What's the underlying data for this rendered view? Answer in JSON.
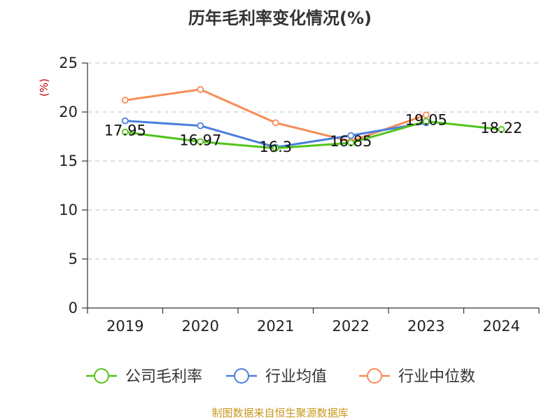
{
  "chart_data": {
    "type": "line",
    "title": "历年毛利率变化情况(%)",
    "ylabel": "(%)",
    "xlabel": "",
    "categories": [
      "2019",
      "2020",
      "2021",
      "2022",
      "2023",
      "2024"
    ],
    "ylim": [
      0,
      25
    ],
    "yticks": [
      0,
      5,
      10,
      15,
      20,
      25
    ],
    "grid": "horizontal-dashed",
    "legend_position": "bottom",
    "series": [
      {
        "name": "公司毛利率",
        "color": "#52c41a",
        "values": [
          17.95,
          16.97,
          16.3,
          16.85,
          19.05,
          18.22
        ],
        "labels": [
          "17.95",
          "16.97",
          "16.3",
          "16.85",
          "19.05",
          "18.22"
        ]
      },
      {
        "name": "行业均值",
        "color": "#4a7fdc",
        "values": [
          19.1,
          18.6,
          16.4,
          17.6,
          18.9,
          null
        ]
      },
      {
        "name": "行业中位数",
        "color": "#f78c55",
        "values": [
          21.2,
          22.3,
          18.9,
          17.0,
          19.7,
          null
        ]
      }
    ]
  },
  "source": "制图数据来自恒生聚源数据库"
}
